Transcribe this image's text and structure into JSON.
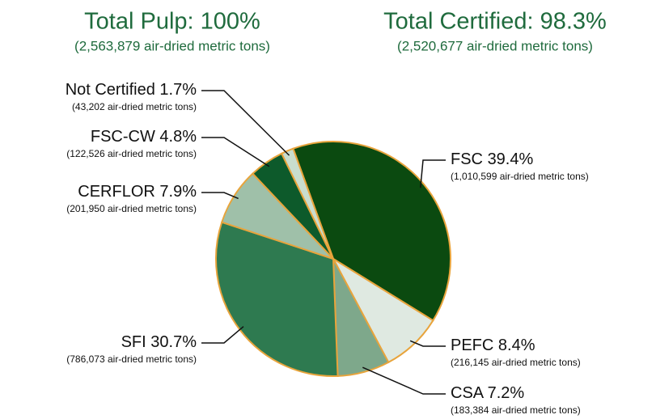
{
  "chart_data": {
    "type": "pie",
    "titles": [
      {
        "title": "Total Pulp: 100%",
        "subtitle": "(2,563,879 air-dried metric tons)"
      },
      {
        "title": "Total Certified: 98.3%",
        "subtitle": "(2,520,677 air-dried metric tons)"
      }
    ],
    "categories": [
      "FSC",
      "PEFC",
      "CSA",
      "SFI",
      "CERFLOR",
      "FSC-CW",
      "Not Certified"
    ],
    "values": [
      39.4,
      8.4,
      7.2,
      30.7,
      7.9,
      4.8,
      1.7
    ],
    "value_labels": [
      "39.4%",
      "8.4%",
      "7.2%",
      "30.7%",
      "7.9%",
      "4.8%",
      "1.7%"
    ],
    "sublabels": [
      "(1,010,599 air-dried metric tons)",
      "(216,145 air-dried metric tons)",
      "(183,384 air-dried metric tons)",
      "(786,073 air-dried metric tons)",
      "(201,950 air-dried metric tons)",
      "(122,526 air-dried metric tons)",
      "(43,202 air-dried metric tons)"
    ],
    "colors": [
      "#0b4a10",
      "#dfe9e1",
      "#7ea88b",
      "#2e7a50",
      "#9fc0a9",
      "#0d5a2b",
      "#c9ddce"
    ],
    "start_angle": -20,
    "edge_color": "#e8a43c"
  }
}
